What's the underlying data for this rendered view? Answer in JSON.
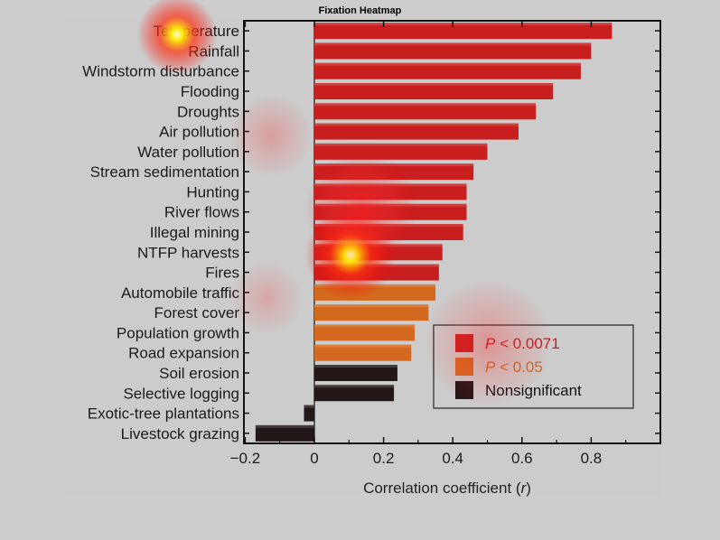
{
  "window": {
    "title": "Fixation Heatmap"
  },
  "chart_data": {
    "type": "bar",
    "orientation": "horizontal",
    "categories": [
      "Temperature",
      "Rainfall",
      "Windstorm disturbance",
      "Flooding",
      "Droughts",
      "Air pollution",
      "Water pollution",
      "Stream sedimentation",
      "Hunting",
      "River flows",
      "Illegal mining",
      "NTFP harvests",
      "Fires",
      "Automobile traffic",
      "Forest cover",
      "Population growth",
      "Road expansion",
      "Soil erosion",
      "Selective logging",
      "Exotic-tree plantations",
      "Livestock grazing"
    ],
    "values": [
      0.86,
      0.8,
      0.77,
      0.69,
      0.64,
      0.59,
      0.5,
      0.46,
      0.44,
      0.44,
      0.43,
      0.37,
      0.36,
      0.35,
      0.33,
      0.29,
      0.28,
      0.24,
      0.23,
      -0.03,
      -0.17
    ],
    "significance": [
      "p0071",
      "p0071",
      "p0071",
      "p0071",
      "p0071",
      "p0071",
      "p0071",
      "p0071",
      "p0071",
      "p0071",
      "p0071",
      "p0071",
      "p0071",
      "p05",
      "p05",
      "p05",
      "p05",
      "ns",
      "ns",
      "ns",
      "ns"
    ],
    "xlabel": "Correlation coefficient (r)",
    "xlim": [
      -0.2,
      1.0
    ],
    "xticks": [
      -0.2,
      0,
      0.2,
      0.4,
      0.6,
      0.8
    ],
    "xtick_labels": [
      "−0.2",
      "0",
      "0.2",
      "0.4",
      "0.6",
      "0.8"
    ],
    "legend": {
      "placement": "lower-right",
      "items": [
        {
          "key": "p0071",
          "label": "P < 0.0071",
          "color": "#c81e1e",
          "text_color": "#c81e1e"
        },
        {
          "key": "p05",
          "label": "P < 0.05",
          "color": "#d2691e",
          "text_color": "#d2691e"
        },
        {
          "key": "ns",
          "label": "Nonsignificant",
          "color": "#231818",
          "text_color": "#111111"
        }
      ]
    }
  },
  "heatmap": {
    "hotspots": [
      {
        "label": "temperature-label",
        "intensity": 1.0
      },
      {
        "label": "ntfp-bars",
        "intensity": 1.0
      },
      {
        "label": "illegal-mining-bars",
        "intensity": 0.6
      },
      {
        "label": "legend-area",
        "intensity": 0.45
      },
      {
        "label": "mid-labels",
        "intensity": 0.35
      }
    ]
  }
}
